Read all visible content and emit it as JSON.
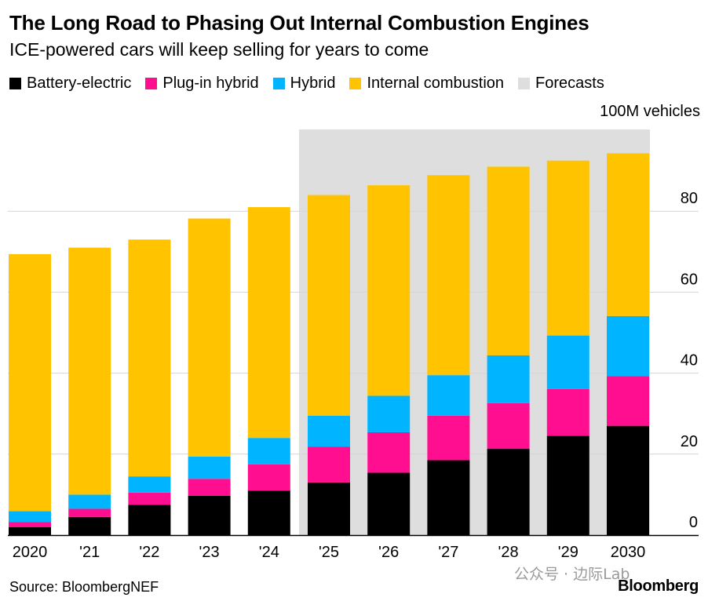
{
  "title": "The Long Road to Phasing Out Internal Combustion Engines",
  "subtitle": "ICE-powered cars will keep selling for years to come",
  "legend": [
    {
      "label": "Battery-electric",
      "color": "#000000"
    },
    {
      "label": "Plug-in hybrid",
      "color": "#ff0f8f"
    },
    {
      "label": "Hybrid",
      "color": "#00b4ff"
    },
    {
      "label": "Internal combustion",
      "color": "#ffc300"
    },
    {
      "label": "Forecasts",
      "color": "#dedede"
    }
  ],
  "unit_label": "100M vehicles",
  "footer": {
    "source": "Source: BloombergNEF",
    "watermark": "公众号 · 边际Lab",
    "brand": "Bloomberg"
  },
  "chart_data": {
    "type": "bar",
    "stacked": true,
    "categories": [
      "2020",
      "'21",
      "'22",
      "'23",
      "'24",
      "'25",
      "'26",
      "'27",
      "'28",
      "'29",
      "2030"
    ],
    "series": [
      {
        "name": "Battery-electric",
        "color": "#000000",
        "values": [
          2,
          4.5,
          7.5,
          9.7,
          11,
          13,
          15.4,
          18.5,
          21.3,
          24.5,
          27
        ]
      },
      {
        "name": "Plug-in hybrid",
        "color": "#ff0f8f",
        "values": [
          1.2,
          2,
          3,
          4.2,
          6.5,
          8.8,
          10,
          11,
          11.3,
          11.6,
          12.3
        ]
      },
      {
        "name": "Hybrid",
        "color": "#00b4ff",
        "values": [
          2.7,
          3.5,
          4,
          5.5,
          6.5,
          7.7,
          9,
          10,
          11.8,
          13.2,
          14.8
        ]
      },
      {
        "name": "Internal combustion",
        "color": "#ffc300",
        "values": [
          63.5,
          61,
          58.5,
          58.8,
          57,
          54.5,
          52,
          49.4,
          46.6,
          43.2,
          40.2
        ]
      }
    ],
    "forecast_start_index": 5,
    "forecast_color": "#dedede",
    "yticks": [
      0,
      20,
      40,
      60,
      80
    ],
    "ylim": [
      0,
      100
    ],
    "y_axis_position": "right",
    "grid": true,
    "legend_position": "top-left",
    "xlabel": "",
    "ylabel": ""
  }
}
